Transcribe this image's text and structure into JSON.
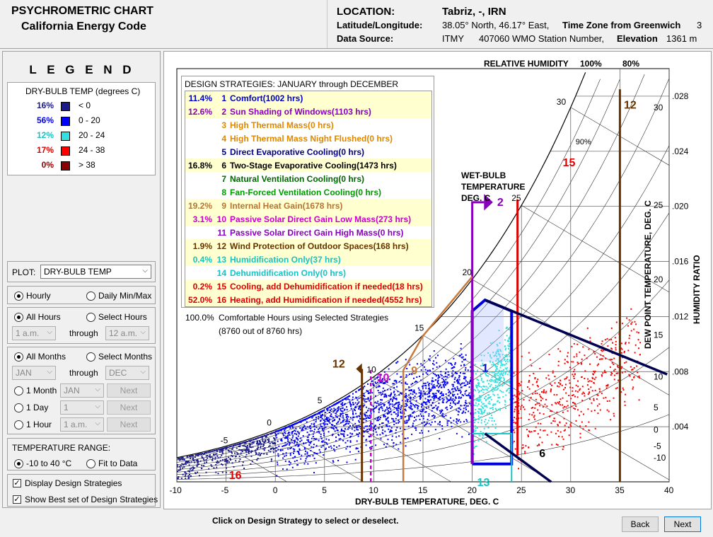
{
  "header": {
    "title_line1": "PSYCHROMETRIC CHART",
    "title_line2": "California Energy Code",
    "location_label": "LOCATION:",
    "location_value": "Tabriz, -, IRN",
    "latlon_label": "Latitude/Longitude:",
    "latlon_value": "38.05° North, 46.17° East,",
    "timezone_label": "Time Zone from Greenwich",
    "timezone_value": "3",
    "source_label": "Data Source:",
    "source_value": "ITMY",
    "station_value": "407060 WMO Station Number,",
    "elevation_label": "Elevation",
    "elevation_value": "1361 m"
  },
  "legend": {
    "title": "L E G E N D",
    "heading": "DRY-BULB TEMP (degrees C)",
    "rows": [
      {
        "pct": "16%",
        "color": "#1a1a8c",
        "pct_color": "#1a1a8c",
        "range": "< 0"
      },
      {
        "pct": "56%",
        "color": "#0000ff",
        "pct_color": "#0000ff",
        "range": "0    -    20"
      },
      {
        "pct": "12%",
        "color": "#33e0e0",
        "pct_color": "#17c3c3",
        "range": "20    -    24"
      },
      {
        "pct": "17%",
        "color": "#ff0000",
        "pct_color": "#dd0000",
        "range": "24    -    38"
      },
      {
        "pct": "0%",
        "color": "#8b0000",
        "pct_color": "#8b0000",
        "range": "> 38"
      }
    ]
  },
  "controls": {
    "plot_label": "PLOT:",
    "plot_value": "DRY-BULB TEMP",
    "hourly": "Hourly",
    "daily": "Daily Min/Max",
    "all_hours": "All Hours",
    "select_hours": "Select Hours",
    "hour_from": "1 a.m.",
    "through": "through",
    "hour_to": "12 a.m.",
    "all_months": "All Months",
    "select_months": "Select Months",
    "month_from": "JAN",
    "month_to": "DEC",
    "one_month": "1 Month",
    "one_month_val": "JAN",
    "one_day": "1 Day",
    "one_day_val": "1",
    "one_hour": "1 Hour",
    "one_hour_val": "1 a.m.",
    "next": "Next",
    "temp_range_label": "TEMPERATURE RANGE:",
    "range_option": "-10 to 40 °C",
    "fit_option": "Fit to Data",
    "display_strategies": "Display Design Strategies",
    "show_best": "Show Best set of Design Strategies"
  },
  "strategies": {
    "title": "DESIGN STRATEGIES:  JANUARY through DECEMBER",
    "items": [
      {
        "pct": "11.4%",
        "num": "1",
        "label": "Comfort(1002 hrs)",
        "color": "#0000cc",
        "hl": true
      },
      {
        "pct": "12.6%",
        "num": "2",
        "label": "Sun Shading of Windows(1103 hrs)",
        "color": "#8800bb",
        "hl": true
      },
      {
        "pct": "",
        "num": "3",
        "label": "High Thermal Mass(0 hrs)",
        "color": "#dd8800",
        "hl": false
      },
      {
        "pct": "",
        "num": "4",
        "label": "High Thermal Mass Night Flushed(0 hrs)",
        "color": "#dd8800",
        "hl": false
      },
      {
        "pct": "",
        "num": "5",
        "label": "Direct Evaporative Cooling(0 hrs)",
        "color": "#000080",
        "hl": false
      },
      {
        "pct": "16.8%",
        "num": "6",
        "label": "Two-Stage Evaporative Cooling(1473 hrs)",
        "color": "#000000",
        "hl": true
      },
      {
        "pct": "",
        "num": "7",
        "label": "Natural Ventilation Cooling(0 hrs)",
        "color": "#006600",
        "hl": false
      },
      {
        "pct": "",
        "num": "8",
        "label": "Fan-Forced Ventilation Cooling(0 hrs)",
        "color": "#009900",
        "hl": false
      },
      {
        "pct": "19.2%",
        "num": "9",
        "label": "Internal Heat Gain(1678 hrs)",
        "color": "#b87333",
        "hl": true
      },
      {
        "pct": "3.1%",
        "num": "10",
        "label": "Passive Solar Direct Gain Low Mass(273 hrs)",
        "color": "#cc00cc",
        "hl": true
      },
      {
        "pct": "",
        "num": "11",
        "label": "Passive Solar Direct Gain High Mass(0 hrs)",
        "color": "#8800bb",
        "hl": false
      },
      {
        "pct": "1.9%",
        "num": "12",
        "label": "Wind Protection of Outdoor Spaces(168 hrs)",
        "color": "#663300",
        "hl": true
      },
      {
        "pct": "0.4%",
        "num": "13",
        "label": "Humidification Only(37 hrs)",
        "color": "#17c3c3",
        "hl": true
      },
      {
        "pct": "",
        "num": "14",
        "label": "Dehumidification Only(0 hrs)",
        "color": "#17c3c3",
        "hl": false
      },
      {
        "pct": "0.2%",
        "num": "15",
        "label": "Cooling, add Dehumidification if needed(18 hrs)",
        "color": "#dd0000",
        "hl": true
      },
      {
        "pct": "52.0%",
        "num": "16",
        "label": "Heating, add Humidification if needed(4552 hrs)",
        "color": "#dd0000",
        "hl": true
      }
    ],
    "comfort_pct": "100.0%",
    "comfort_label": "Comfortable Hours using Selected Strategies",
    "comfort_sub": "(8760 out of 8760 hrs)"
  },
  "chart_labels": {
    "rh_title": "RELATIVE HUMIDITY",
    "rh_100": "100%",
    "rh_80": "80%",
    "rh_90": "90%",
    "wb_line1": "WET-BULB",
    "wb_line2": "TEMPERATURE",
    "wb_line3": "DEG. C",
    "x_axis": "DRY-BULB TEMPERATURE, DEG. C",
    "dp_axis": "DEW POINT TEMPERATURE, DEG. C",
    "hr_axis": "HUMIDITY RATIO",
    "x_ticks": [
      "-10",
      "-5",
      "0",
      "5",
      "10",
      "15",
      "20",
      "25",
      "30",
      "35",
      "40"
    ],
    "hr_ticks": [
      ".004",
      ".008",
      ".012",
      ".016",
      ".020",
      ".024",
      ".028"
    ],
    "dp_ticks": [
      "-10",
      "-5",
      "0",
      "5",
      "10",
      "15",
      "20",
      "25",
      "30"
    ],
    "wb_ticks": [
      "-5",
      "0",
      "5",
      "10",
      "15",
      "20",
      "25",
      "30"
    ],
    "zone_labels": [
      "1",
      "2",
      "6",
      "9",
      "10",
      "12",
      "12",
      "13",
      "15",
      "16"
    ]
  },
  "chart_data": {
    "type": "scatter",
    "xlabel": "DRY-BULB TEMPERATURE, DEG. C",
    "ylabel": "HUMIDITY RATIO",
    "xlim": [
      -10,
      40
    ],
    "ylim": [
      0,
      0.03
    ],
    "series": [
      {
        "name": "< 0",
        "color": "#1a1a8c",
        "x_range": [
          -10,
          0
        ],
        "y_range": [
          0.0005,
          0.004
        ]
      },
      {
        "name": "0 - 20",
        "color": "#0000ff",
        "x_range": [
          0,
          20
        ],
        "y_range": [
          0.0015,
          0.009
        ]
      },
      {
        "name": "20 - 24",
        "color": "#33e0e0",
        "x_range": [
          20,
          24
        ],
        "y_range": [
          0.003,
          0.011
        ]
      },
      {
        "name": "24 - 38",
        "color": "#ff0000",
        "x_range": [
          24,
          37
        ],
        "y_range": [
          0.002,
          0.012
        ]
      }
    ]
  },
  "footer": {
    "note": "Click on Design Strategy to select or deselect.",
    "back": "Back",
    "next": "Next"
  }
}
